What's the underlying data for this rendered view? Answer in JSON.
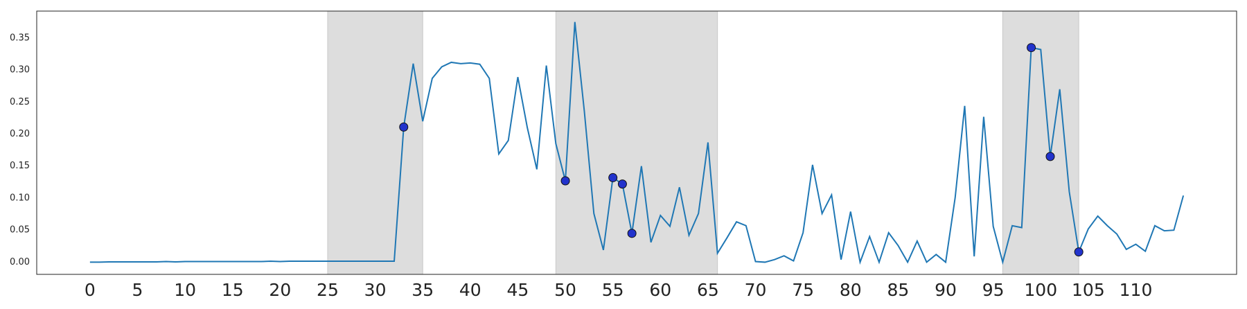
{
  "chart_data": {
    "type": "line",
    "x": [
      0,
      1,
      2,
      3,
      4,
      5,
      6,
      7,
      8,
      9,
      10,
      11,
      12,
      13,
      14,
      15,
      16,
      17,
      18,
      19,
      20,
      21,
      22,
      23,
      24,
      25,
      26,
      27,
      28,
      29,
      30,
      31,
      32,
      33,
      34,
      35,
      36,
      37,
      38,
      39,
      40,
      41,
      42,
      43,
      44,
      45,
      46,
      47,
      48,
      49,
      50,
      51,
      52,
      53,
      54,
      55,
      56,
      57,
      58,
      59,
      60,
      61,
      62,
      63,
      64,
      65,
      66,
      67,
      68,
      69,
      70,
      71,
      72,
      73,
      74,
      75,
      76,
      77,
      78,
      79,
      80,
      81,
      82,
      83,
      84,
      85,
      86,
      87,
      88,
      89,
      90,
      91,
      92,
      93,
      94,
      95,
      96,
      97,
      98,
      99,
      100,
      101,
      102,
      103,
      104,
      105,
      106,
      107,
      108,
      109,
      110,
      111,
      112,
      113,
      114,
      115
    ],
    "series": [
      {
        "color": "#1f77b4",
        "values": [
          0.0,
          0.0,
          0.0005,
          0.0005,
          0.0005,
          0.0005,
          0.0005,
          0.0005,
          0.001,
          0.0005,
          0.001,
          0.001,
          0.001,
          0.001,
          0.001,
          0.001,
          0.001,
          0.001,
          0.001,
          0.0015,
          0.001,
          0.0015,
          0.0015,
          0.0015,
          0.0015,
          0.0015,
          0.0015,
          0.0015,
          0.0015,
          0.0015,
          0.0015,
          0.0015,
          0.0015,
          0.211,
          0.31,
          0.22,
          0.287,
          0.305,
          0.312,
          0.31,
          0.311,
          0.309,
          0.287,
          0.169,
          0.19,
          0.289,
          0.21,
          0.145,
          0.307,
          0.185,
          0.127,
          0.375,
          0.235,
          0.076,
          0.019,
          0.132,
          0.122,
          0.045,
          0.15,
          0.031,
          0.073,
          0.056,
          0.117,
          0.042,
          0.076,
          0.187,
          0.014,
          0.038,
          0.063,
          0.057,
          0.001,
          0.0,
          0.004,
          0.01,
          0.002,
          0.046,
          0.152,
          0.076,
          0.105,
          0.004,
          0.079,
          0.0,
          0.04,
          0.0,
          0.046,
          0.026,
          0.0,
          0.033,
          0.0,
          0.012,
          0.0,
          0.101,
          0.244,
          0.009,
          0.227,
          0.056,
          0.0,
          0.057,
          0.054,
          0.335,
          0.332,
          0.165,
          0.27,
          0.11,
          0.016,
          0.052,
          0.072,
          0.057,
          0.044,
          0.02,
          0.028,
          0.017,
          0.057,
          0.049,
          0.05,
          0.104
        ]
      }
    ],
    "markers": {
      "color": "#2233cc",
      "x": [
        33,
        50,
        55,
        56,
        57,
        99,
        101,
        104
      ],
      "values": [
        0.211,
        0.127,
        0.132,
        0.122,
        0.045,
        0.335,
        0.165,
        0.016
      ]
    },
    "spans": [
      [
        25,
        35
      ],
      [
        49,
        66
      ],
      [
        96,
        104
      ]
    ],
    "span_color": "#dddddd",
    "xlim": [
      -5.6,
      120.6
    ],
    "ylim": [
      -0.019,
      0.392
    ],
    "xticks": [
      0,
      5,
      10,
      15,
      20,
      25,
      30,
      35,
      40,
      45,
      50,
      55,
      60,
      65,
      70,
      75,
      80,
      85,
      90,
      95,
      100,
      105,
      110
    ],
    "yticks": [
      {
        "value": 0,
        "label": "0.00"
      },
      {
        "value": 0.05,
        "label": "0.05"
      },
      {
        "value": 0.1,
        "label": "0.10"
      },
      {
        "value": 0.15,
        "label": "0.15"
      },
      {
        "value": 0.2,
        "label": "0.20"
      },
      {
        "value": 0.25,
        "label": "0.25"
      },
      {
        "value": 0.3,
        "label": "0.30"
      },
      {
        "value": 0.35,
        "label": "0.35"
      }
    ]
  }
}
